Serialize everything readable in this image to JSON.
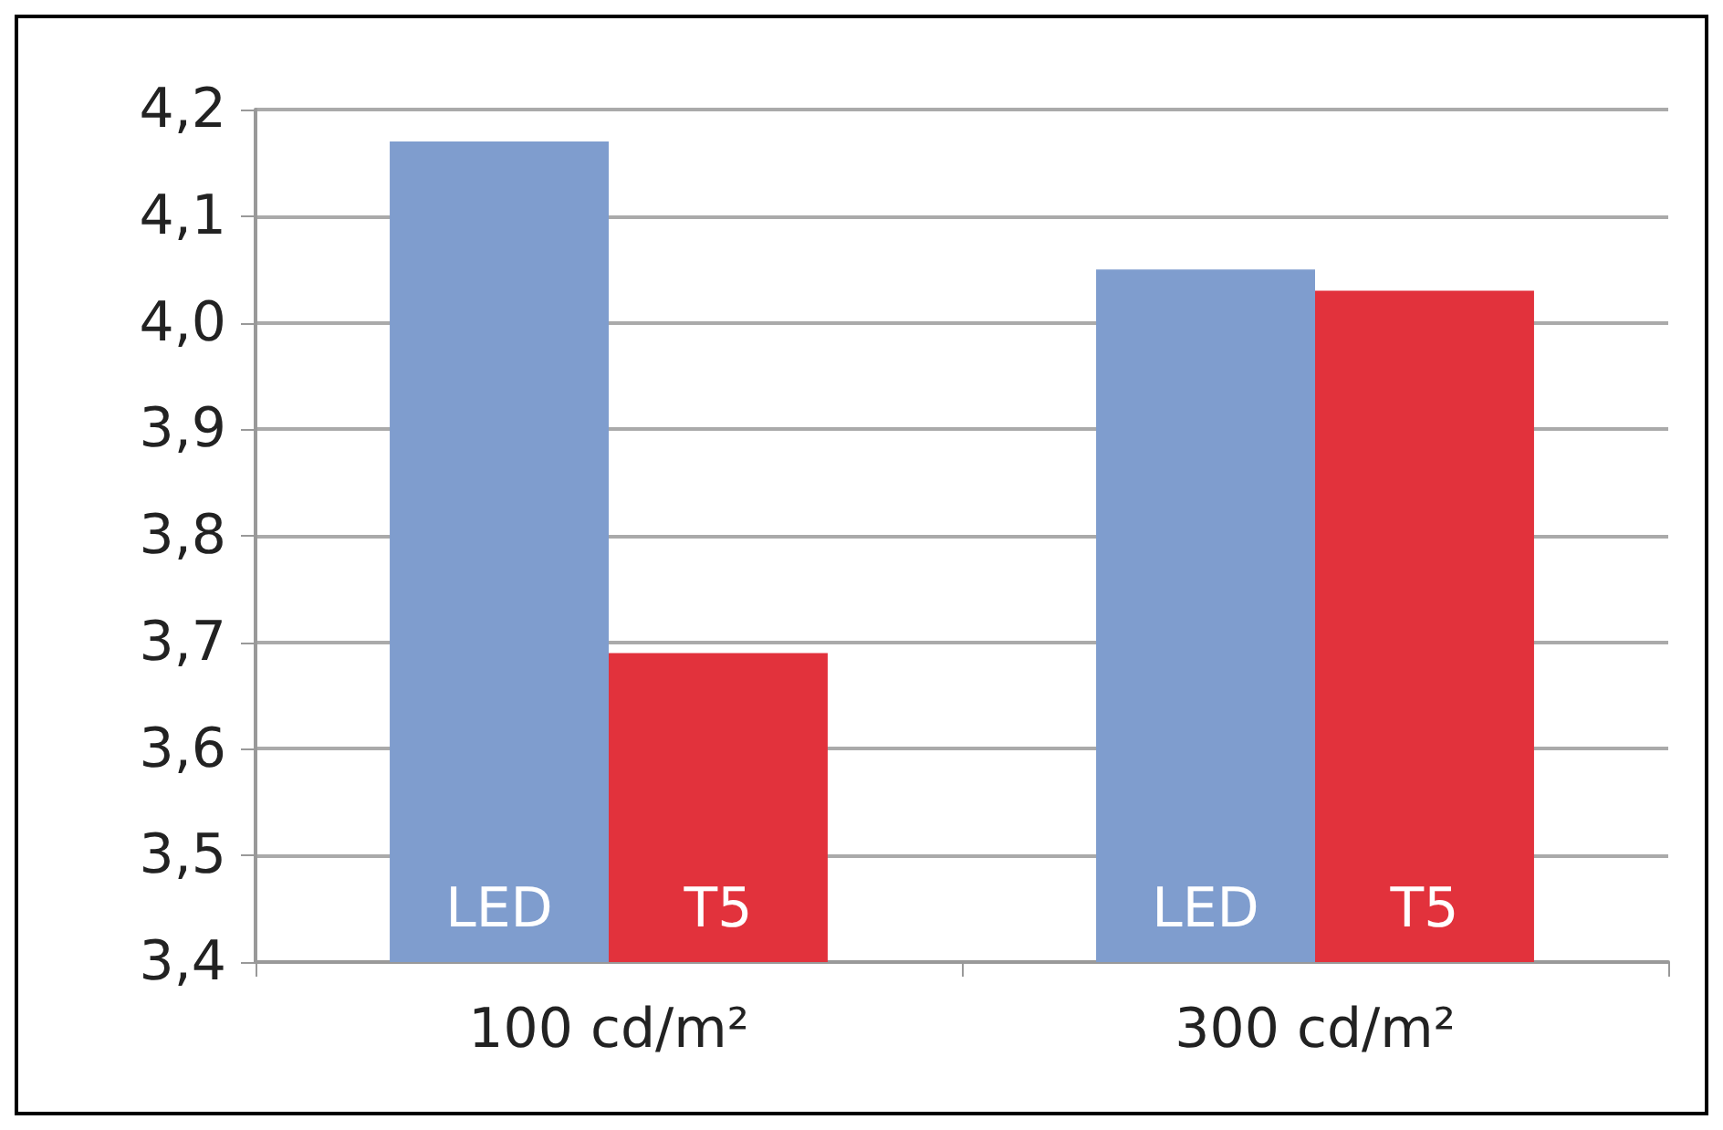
{
  "chart_data": {
    "type": "bar",
    "categories": [
      "100 cd/m²",
      "300 cd/m²"
    ],
    "series": [
      {
        "name": "LED",
        "color": "#7f9dce",
        "values": [
          4.17,
          4.05
        ]
      },
      {
        "name": "T5",
        "color": "#e2323c",
        "values": [
          3.69,
          4.03
        ]
      }
    ],
    "ylim": [
      3.4,
      4.2
    ],
    "yticks": [
      {
        "value": 3.4,
        "label": "3,4"
      },
      {
        "value": 3.5,
        "label": "3,5"
      },
      {
        "value": 3.6,
        "label": "3,6"
      },
      {
        "value": 3.7,
        "label": "3,7"
      },
      {
        "value": 3.8,
        "label": "3,8"
      },
      {
        "value": 3.9,
        "label": "3,9"
      },
      {
        "value": 4.0,
        "label": "4,0"
      },
      {
        "value": 4.1,
        "label": "4,1"
      },
      {
        "value": 4.2,
        "label": "4,2"
      }
    ],
    "grid": "y",
    "legend": false
  }
}
